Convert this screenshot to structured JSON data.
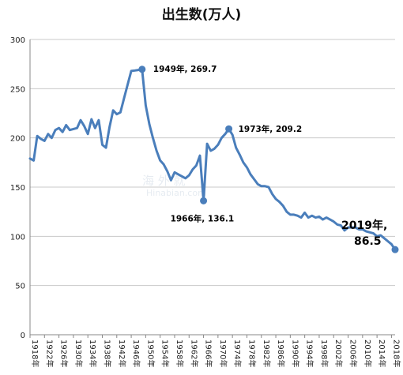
{
  "chart_data": {
    "type": "line",
    "title": "出生数(万人)",
    "xlabel": "",
    "ylabel": "",
    "ylim": [
      0,
      300
    ],
    "yticks": [
      0,
      50,
      100,
      150,
      200,
      250,
      300
    ],
    "xlim": [
      1918,
      2019
    ],
    "xtick_labels": [
      "1918年",
      "1922年",
      "1926年",
      "1930年",
      "1934年",
      "1938年",
      "1942年",
      "1946年",
      "1950年",
      "1954年",
      "1958年",
      "1962年",
      "1966年",
      "1970年",
      "1974年",
      "1978年",
      "1982年",
      "1986年",
      "1990年",
      "1994年",
      "1998年",
      "2002年",
      "2006年",
      "2010年",
      "2014年",
      "2018年"
    ],
    "grid": "horizontal",
    "legend": "none",
    "line_color": "#4a7ebb",
    "series": [
      {
        "x": [
          1918,
          1919,
          1920,
          1921,
          1922,
          1923,
          1924,
          1925,
          1926,
          1927,
          1928,
          1929,
          1930,
          1931,
          1932,
          1933,
          1934,
          1935,
          1936,
          1937,
          1938,
          1939,
          1940,
          1941,
          1942,
          1943,
          1944,
          1945,
          1946,
          1947,
          1948,
          1949,
          1950,
          1951,
          1952,
          1953,
          1954,
          1955,
          1956,
          1957,
          1958,
          1959,
          1960,
          1961,
          1962,
          1963,
          1964,
          1965,
          1966,
          1967,
          1968,
          1969,
          1970,
          1971,
          1972,
          1973,
          1974,
          1975,
          1976,
          1977,
          1978,
          1979,
          1980,
          1981,
          1982,
          1983,
          1984,
          1985,
          1986,
          1987,
          1988,
          1989,
          1990,
          1991,
          1992,
          1993,
          1994,
          1995,
          1996,
          1997,
          1998,
          1999,
          2000,
          2001,
          2002,
          2003,
          2004,
          2005,
          2006,
          2007,
          2008,
          2009,
          2010,
          2011,
          2012,
          2013,
          2014,
          2015,
          2016,
          2017,
          2018,
          2019
        ],
        "values": [
          179,
          177,
          202,
          199,
          197,
          204,
          200,
          208,
          210,
          206,
          213,
          208,
          209,
          210,
          218,
          212,
          204,
          219,
          210,
          218,
          193,
          190,
          211,
          228,
          224,
          226,
          240,
          254,
          268,
          268.5,
          269,
          269.7,
          233,
          214,
          200,
          187,
          177,
          173,
          166,
          157,
          165,
          163,
          161,
          159,
          162,
          168,
          172,
          182,
          136.1,
          194,
          187,
          189,
          193,
          200,
          204,
          209.2,
          203,
          190,
          183,
          175,
          170,
          163,
          158,
          153,
          151,
          151,
          150,
          143,
          138,
          135,
          131,
          125,
          122,
          122,
          121,
          119,
          124,
          119,
          121,
          119,
          120,
          117,
          119,
          117,
          115,
          112,
          111,
          106,
          109,
          109,
          109,
          107,
          107,
          105,
          104,
          103,
          100,
          101,
          98,
          95,
          92,
          86.5
        ]
      }
    ],
    "annotations": [
      {
        "x": 1949,
        "y": 269.7,
        "label": "1949年, 269.7"
      },
      {
        "x": 1973,
        "y": 209.2,
        "label": "1973年, 209.2"
      },
      {
        "x": 1966,
        "y": 136.1,
        "label": "1966年, 136.1"
      },
      {
        "x": 2019,
        "y": 86.5,
        "label_line1": "2019年,",
        "label_line2": "86.5"
      }
    ]
  }
}
